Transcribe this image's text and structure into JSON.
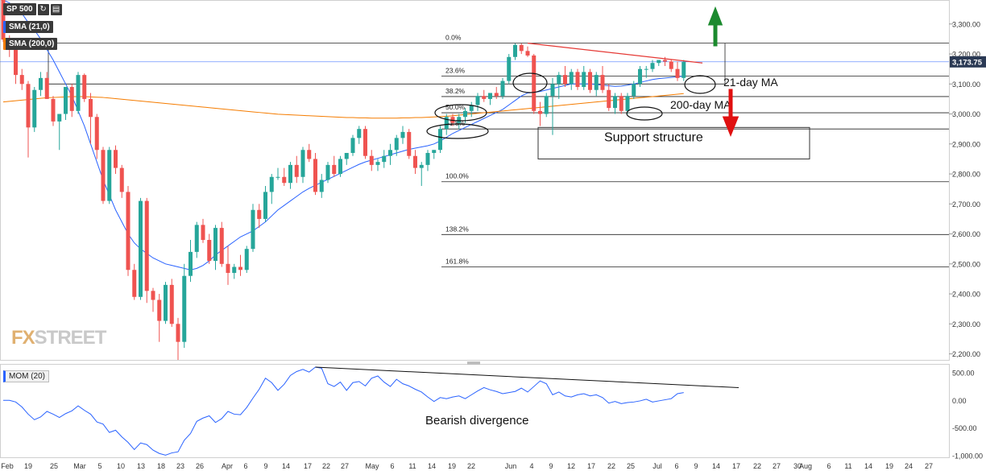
{
  "toolbar": {
    "symbol": "SP 500",
    "sma21_label": "SMA (21,0)",
    "sma200_label": "SMA (200,0)",
    "refresh_icon": "refresh-icon",
    "calendar_icon": "calendar-icon"
  },
  "logo": {
    "accent": "FX",
    "rest": "STREET"
  },
  "momentum_label": "MOM (20)",
  "colors": {
    "up": "#26a69a",
    "down": "#ef5350",
    "sma21": "#2962ff",
    "sma200": "#f57c00",
    "trend": "#e53935",
    "arrow_up": "#1b8a2e",
    "arrow_down": "#e01010"
  },
  "chart_data": {
    "type": "candlestick",
    "price_axis": {
      "ylim": [
        2180,
        3380
      ],
      "ticks": [
        2200,
        2300,
        2400,
        2500,
        2600,
        2700,
        2800,
        2900,
        3000,
        3100,
        3200,
        3300
      ],
      "tick_labels": [
        "2,200.00",
        "2,300.00",
        "2,400.00",
        "2,500.00",
        "2,600.00",
        "2,700.00",
        "2,800.00",
        "2,900.00",
        "3,000.00",
        "3,100.00",
        "3,200.00",
        "3,300.00"
      ],
      "last_price": 3173.75,
      "last_price_label": "3,173.75"
    },
    "x_axis": {
      "labels": [
        "Feb",
        "19",
        "25",
        "Mar",
        "5",
        "10",
        "13",
        "18",
        "23",
        "26",
        "Apr",
        "6",
        "9",
        "14",
        "17",
        "22",
        "27",
        "May",
        "6",
        "11",
        "14",
        "19",
        "22",
        "Jun",
        "4",
        "9",
        "12",
        "17",
        "22",
        "25",
        "Jul",
        "6",
        "9",
        "14",
        "17",
        "22",
        "27",
        "30",
        "Aug",
        "6",
        "11",
        "14",
        "19",
        "24",
        "27"
      ]
    },
    "candles": [
      [
        3380,
        3393,
        3240,
        3248
      ],
      [
        3248,
        3262,
        3190,
        3215
      ],
      [
        3215,
        3228,
        3100,
        3130
      ],
      [
        3130,
        3150,
        3080,
        3100
      ],
      [
        3100,
        3110,
        2855,
        2955
      ],
      [
        2955,
        3090,
        2940,
        3080
      ],
      [
        3080,
        3140,
        3060,
        3120
      ],
      [
        3120,
        3140,
        3050,
        3050
      ],
      [
        3050,
        3060,
        2960,
        2975
      ],
      [
        2975,
        3000,
        2880,
        3000
      ],
      [
        3000,
        3090,
        2980,
        3090
      ],
      [
        3090,
        3100,
        2990,
        3010
      ],
      [
        3010,
        3140,
        3000,
        3130
      ],
      [
        3130,
        3135,
        3040,
        3050
      ],
      [
        3050,
        3070,
        2900,
        2990
      ],
      [
        2990,
        3000,
        2850,
        2880
      ],
      [
        2880,
        2890,
        2700,
        2710
      ],
      [
        2710,
        2890,
        2700,
        2880
      ],
      [
        2880,
        2895,
        2800,
        2820
      ],
      [
        2820,
        2830,
        2720,
        2740
      ],
      [
        2740,
        2760,
        2460,
        2480
      ],
      [
        2480,
        2500,
        2380,
        2390
      ],
      [
        2390,
        2720,
        2380,
        2710
      ],
      [
        2710,
        2720,
        2370,
        2410
      ],
      [
        2410,
        2420,
        2340,
        2380
      ],
      [
        2380,
        2400,
        2240,
        2310
      ],
      [
        2310,
        2440,
        2300,
        2430
      ],
      [
        2430,
        2450,
        2290,
        2300
      ],
      [
        2300,
        2320,
        2180,
        2240
      ],
      [
        2240,
        2500,
        2220,
        2460
      ],
      [
        2460,
        2580,
        2440,
        2540
      ],
      [
        2540,
        2640,
        2520,
        2630
      ],
      [
        2630,
        2650,
        2570,
        2580
      ],
      [
        2580,
        2600,
        2500,
        2510
      ],
      [
        2510,
        2630,
        2480,
        2620
      ],
      [
        2620,
        2640,
        2490,
        2500
      ],
      [
        2500,
        2560,
        2430,
        2470
      ],
      [
        2470,
        2500,
        2450,
        2490
      ],
      [
        2490,
        2530,
        2460,
        2480
      ],
      [
        2480,
        2560,
        2470,
        2550
      ],
      [
        2550,
        2700,
        2540,
        2680
      ],
      [
        2680,
        2700,
        2620,
        2650
      ],
      [
        2650,
        2760,
        2640,
        2740
      ],
      [
        2740,
        2800,
        2700,
        2790
      ],
      [
        2790,
        2820,
        2780,
        2790
      ],
      [
        2790,
        2820,
        2760,
        2770
      ],
      [
        2770,
        2840,
        2750,
        2830
      ],
      [
        2830,
        2860,
        2770,
        2790
      ],
      [
        2790,
        2890,
        2770,
        2880
      ],
      [
        2880,
        2900,
        2840,
        2850
      ],
      [
        2850,
        2870,
        2730,
        2740
      ],
      [
        2740,
        2800,
        2720,
        2780
      ],
      [
        2780,
        2840,
        2770,
        2830
      ],
      [
        2830,
        2860,
        2790,
        2800
      ],
      [
        2800,
        2860,
        2790,
        2850
      ],
      [
        2850,
        2870,
        2830,
        2870
      ],
      [
        2870,
        2930,
        2860,
        2920
      ],
      [
        2920,
        2960,
        2900,
        2950
      ],
      [
        2950,
        2960,
        2850,
        2860
      ],
      [
        2860,
        2880,
        2810,
        2830
      ],
      [
        2830,
        2850,
        2810,
        2840
      ],
      [
        2840,
        2880,
        2820,
        2860
      ],
      [
        2860,
        2900,
        2830,
        2880
      ],
      [
        2880,
        2930,
        2860,
        2920
      ],
      [
        2920,
        2960,
        2900,
        2940
      ],
      [
        2940,
        2950,
        2850,
        2860
      ],
      [
        2860,
        2880,
        2800,
        2820
      ],
      [
        2820,
        2840,
        2760,
        2830
      ],
      [
        2830,
        2880,
        2810,
        2870
      ],
      [
        2870,
        2880,
        2850,
        2880
      ],
      [
        2880,
        2960,
        2870,
        2950
      ],
      [
        2950,
        3000,
        2930,
        2990
      ],
      [
        2990,
        3000,
        2960,
        2970
      ],
      [
        2970,
        3000,
        2950,
        2990
      ],
      [
        2990,
        3020,
        2970,
        3010
      ],
      [
        3010,
        3040,
        2990,
        3030
      ],
      [
        3030,
        3070,
        3010,
        3060
      ],
      [
        3060,
        3080,
        3040,
        3050
      ],
      [
        3050,
        3070,
        3030,
        3070
      ],
      [
        3070,
        3090,
        3050,
        3060
      ],
      [
        3060,
        3120,
        3050,
        3110
      ],
      [
        3110,
        3200,
        3100,
        3190
      ],
      [
        3190,
        3235,
        3180,
        3230
      ],
      [
        3230,
        3235,
        3200,
        3210
      ],
      [
        3210,
        3225,
        3190,
        3195
      ],
      [
        3195,
        3200,
        3000,
        3010
      ],
      [
        3010,
        3040,
        2960,
        3000
      ],
      [
        3000,
        3070,
        2990,
        3060
      ],
      [
        3060,
        3120,
        2930,
        3100
      ],
      [
        3100,
        3140,
        3050,
        3130
      ],
      [
        3130,
        3160,
        3090,
        3100
      ],
      [
        3100,
        3150,
        3080,
        3140
      ],
      [
        3140,
        3150,
        3080,
        3090
      ],
      [
        3090,
        3160,
        3080,
        3140
      ],
      [
        3140,
        3150,
        3070,
        3080
      ],
      [
        3080,
        3140,
        3060,
        3130
      ],
      [
        3130,
        3160,
        3070,
        3080
      ],
      [
        3080,
        3100,
        3010,
        3020
      ],
      [
        3020,
        3070,
        3000,
        3060
      ],
      [
        3060,
        3070,
        3000,
        3010
      ],
      [
        3010,
        3070,
        3000,
        3060
      ],
      [
        3060,
        3110,
        3050,
        3100
      ],
      [
        3100,
        3160,
        3090,
        3150
      ],
      [
        3150,
        3160,
        3120,
        3150
      ],
      [
        3150,
        3180,
        3140,
        3170
      ],
      [
        3170,
        3180,
        3160,
        3180
      ],
      [
        3180,
        3190,
        3160,
        3175
      ],
      [
        3175,
        3180,
        3140,
        3150
      ],
      [
        3150,
        3175,
        3110,
        3120
      ],
      [
        3120,
        3180,
        3110,
        3173.75
      ]
    ],
    "series": [
      {
        "name": "SMA (21,0)",
        "values": [
          3380,
          3370,
          3355,
          3335,
          3305,
          3280,
          3250,
          3215,
          3180,
          3140,
          3100,
          3060,
          3010,
          2960,
          2900,
          2840,
          2780,
          2730,
          2680,
          2640,
          2600,
          2570,
          2550,
          2535,
          2520,
          2510,
          2500,
          2495,
          2490,
          2485,
          2480,
          2485,
          2495,
          2510,
          2530,
          2545,
          2560,
          2575,
          2590,
          2600,
          2610,
          2625,
          2640,
          2660,
          2680,
          2695,
          2710,
          2725,
          2740,
          2752,
          2762,
          2772,
          2782,
          2792,
          2802,
          2812,
          2822,
          2832,
          2840,
          2846,
          2852,
          2858,
          2864,
          2870,
          2876,
          2882,
          2886,
          2890,
          2894,
          2900,
          2910,
          2922,
          2935,
          2945,
          2955,
          2965,
          2975,
          2985,
          2995,
          3005,
          3015,
          3030,
          3045,
          3060,
          3070,
          3072,
          3075,
          3080,
          3085,
          3090,
          3095,
          3100,
          3100,
          3100,
          3100,
          3098,
          3096,
          3094,
          3092,
          3093,
          3096,
          3100,
          3105,
          3110,
          3115,
          3118,
          3120,
          3122,
          3124,
          3126
        ]
      },
      {
        "name": "SMA (200,0)",
        "values": [
          3040,
          3042,
          3044,
          3046,
          3048,
          3050,
          3052,
          3054,
          3055,
          3056,
          3057,
          3058,
          3058,
          3058,
          3057,
          3056,
          3055,
          3053,
          3051,
          3049,
          3047,
          3045,
          3043,
          3041,
          3039,
          3037,
          3035,
          3033,
          3031,
          3029,
          3027,
          3025,
          3023,
          3021,
          3019,
          3017,
          3015,
          3013,
          3011,
          3009,
          3007,
          3005,
          3003,
          3001,
          2999,
          2998,
          2997,
          2996,
          2995,
          2994,
          2993,
          2992,
          2991,
          2990,
          2989,
          2988,
          2988,
          2987,
          2987,
          2986,
          2986,
          2986,
          2986,
          2986,
          2987,
          2987,
          2988,
          2988,
          2989,
          2990,
          2991,
          2992,
          2994,
          2996,
          2998,
          3000,
          3002,
          3004,
          3006,
          3008,
          3010,
          3012,
          3014,
          3016,
          3018,
          3020,
          3022,
          3024,
          3026,
          3028,
          3030,
          3032,
          3034,
          3036,
          3038,
          3040,
          3042,
          3044,
          3046,
          3048,
          3050,
          3052,
          3054,
          3056,
          3058,
          3060,
          3062,
          3064,
          3066,
          3068
        ]
      }
    ],
    "fibonacci": [
      {
        "label": "0.0%",
        "price": 3236
      },
      {
        "label": "23.6%",
        "price": 3126
      },
      {
        "label": "38.2%",
        "price": 3058
      },
      {
        "label": "50.0%",
        "price": 3004
      },
      {
        "label": "61.8%",
        "price": 2950
      },
      {
        "label": "100.0%",
        "price": 2774
      },
      {
        "label": "138.2%",
        "price": 2598
      },
      {
        "label": "161.8%",
        "price": 2490
      }
    ],
    "annotations": {
      "ma21": "21-day MA",
      "ma200": "200-day MA",
      "support": "Support structure",
      "divergence": "Bearish divergence",
      "support_zone": [
        2850,
        2955
      ],
      "trend_line": {
        "from": {
          "bar": 84,
          "price": 3236
        },
        "to": {
          "bar": 112,
          "price": 3170
        }
      }
    },
    "momentum": {
      "name": "MOM (20)",
      "ylim": [
        -1000,
        600
      ],
      "ticks": [
        500,
        0,
        -500,
        -1000
      ],
      "tick_labels": [
        "500.00",
        "0.00",
        "-500.00",
        "-1,000.00"
      ],
      "values": [
        0,
        0,
        -30,
        -120,
        -250,
        -350,
        -300,
        -200,
        -250,
        -310,
        -240,
        -190,
        -100,
        -180,
        -250,
        -390,
        -430,
        -580,
        -540,
        -660,
        -760,
        -890,
        -770,
        -800,
        -900,
        -960,
        -990,
        -950,
        -930,
        -720,
        -600,
        -380,
        -320,
        -280,
        -400,
        -330,
        -200,
        -250,
        -260,
        -130,
        40,
        200,
        400,
        320,
        180,
        290,
        450,
        520,
        560,
        510,
        600,
        580,
        300,
        250,
        330,
        180,
        320,
        340,
        260,
        400,
        440,
        330,
        250,
        380,
        300,
        260,
        200,
        150,
        60,
        -20,
        50,
        30,
        60,
        80,
        30,
        100,
        170,
        230,
        190,
        160,
        120,
        140,
        160,
        220,
        150,
        250,
        350,
        300,
        100,
        150,
        80,
        60,
        100,
        120,
        80,
        100,
        50,
        -50,
        -20,
        -60,
        -40,
        -30,
        -10,
        20,
        -30,
        -10,
        10,
        30,
        120,
        140
      ]
    },
    "divergence_line": {
      "from": {
        "bar": 50,
        "value": 600
      },
      "to": {
        "bar": 112,
        "value": 200
      }
    }
  }
}
